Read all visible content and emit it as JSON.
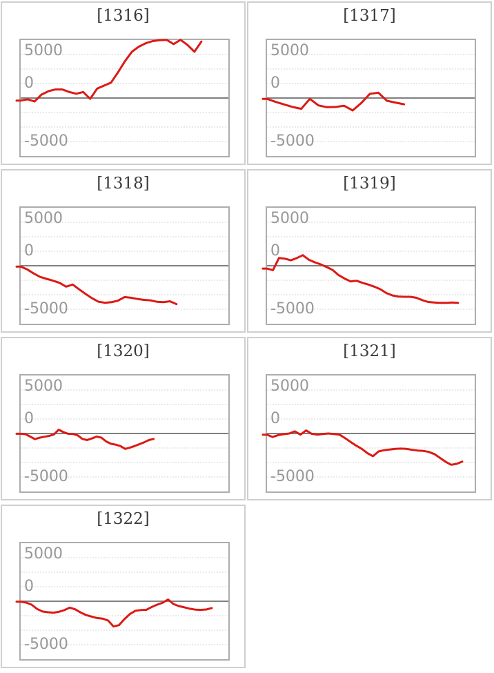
{
  "page": {
    "background": "#ffffff"
  },
  "colors": {
    "line": "#dc1a14",
    "zero_line": "#808080",
    "gridline": "#d6d6d6",
    "plot_border": "#adadad",
    "card_border": "#cfcfcf",
    "tick_label": "#989898",
    "title_text": "#3a3a3a"
  },
  "axis": {
    "ytick_labels": [
      "5000",
      "0",
      "-5000"
    ],
    "ymax": 6770,
    "ymin": -6770,
    "gridlines": "dotted",
    "zero_line": true,
    "legend": "none"
  },
  "chart_data": [
    {
      "type": "line",
      "title": "[1316]",
      "x_extent": 0.87,
      "values": [
        -300,
        -150,
        -400,
        400,
        800,
        1000,
        1000,
        700,
        500,
        700,
        -100,
        1100,
        1450,
        1800,
        3000,
        4300,
        5400,
        6000,
        6400,
        6650,
        6750,
        6800,
        6300,
        6800,
        6200,
        5400,
        6600
      ]
    },
    {
      "type": "line",
      "title": "[1317]",
      "x_extent": 0.66,
      "values": [
        -100,
        -450,
        -750,
        -1050,
        -1260,
        -100,
        -860,
        -1070,
        -1050,
        -900,
        -1450,
        -590,
        480,
        620,
        -320,
        -530,
        -730
      ]
    },
    {
      "type": "line",
      "title": "[1318]",
      "x_extent": 0.75,
      "values": [
        -100,
        -430,
        -900,
        -1310,
        -1530,
        -1750,
        -2000,
        -2440,
        -2190,
        -2760,
        -3300,
        -3800,
        -4210,
        -4320,
        -4260,
        -4070,
        -3660,
        -3740,
        -3880,
        -3990,
        -4040,
        -4210,
        -4260,
        -4150,
        -4480
      ]
    },
    {
      "type": "line",
      "title": "[1319]",
      "x_extent": 0.92,
      "values": [
        -330,
        -520,
        900,
        820,
        640,
        900,
        1230,
        700,
        400,
        150,
        -150,
        -500,
        -1100,
        -1500,
        -1830,
        -1750,
        -2000,
        -2200,
        -2450,
        -2750,
        -3190,
        -3470,
        -3600,
        -3630,
        -3630,
        -3740,
        -4020,
        -4230,
        -4300,
        -4340,
        -4340,
        -4290,
        -4340
      ]
    },
    {
      "type": "line",
      "title": "[1320]",
      "x_extent": 0.64,
      "values": [
        -30,
        -80,
        -360,
        -660,
        -490,
        -380,
        -280,
        -110,
        440,
        160,
        -30,
        -60,
        -220,
        -640,
        -770,
        -580,
        -360,
        -490,
        -930,
        -1200,
        -1310,
        -1470,
        -1800,
        -1660,
        -1470,
        -1250,
        -1030,
        -770,
        -640
      ]
    },
    {
      "type": "line",
      "title": "[1321]",
      "x_extent": 0.94,
      "values": [
        -140,
        -410,
        -190,
        -80,
        0,
        250,
        -140,
        355,
        -30,
        -140,
        -55,
        0,
        -55,
        -140,
        -550,
        -1000,
        -1420,
        -1800,
        -2300,
        -2650,
        -2100,
        -1950,
        -1870,
        -1800,
        -1770,
        -1800,
        -1900,
        -1990,
        -2030,
        -2150,
        -2400,
        -2850,
        -3300,
        -3650,
        -3550,
        -3280
      ]
    },
    {
      "type": "line",
      "title": "[1322]",
      "x_extent": 0.92,
      "values": [
        -55,
        -160,
        -400,
        -900,
        -1200,
        -1290,
        -1340,
        -1230,
        -1040,
        -750,
        -950,
        -1320,
        -1620,
        -1800,
        -1970,
        -2030,
        -2250,
        -2950,
        -2800,
        -2100,
        -1500,
        -1120,
        -1030,
        -1010,
        -680,
        -400,
        -180,
        200,
        -330,
        -570,
        -720,
        -880,
        -980,
        -1010,
        -970,
        -800
      ]
    }
  ]
}
